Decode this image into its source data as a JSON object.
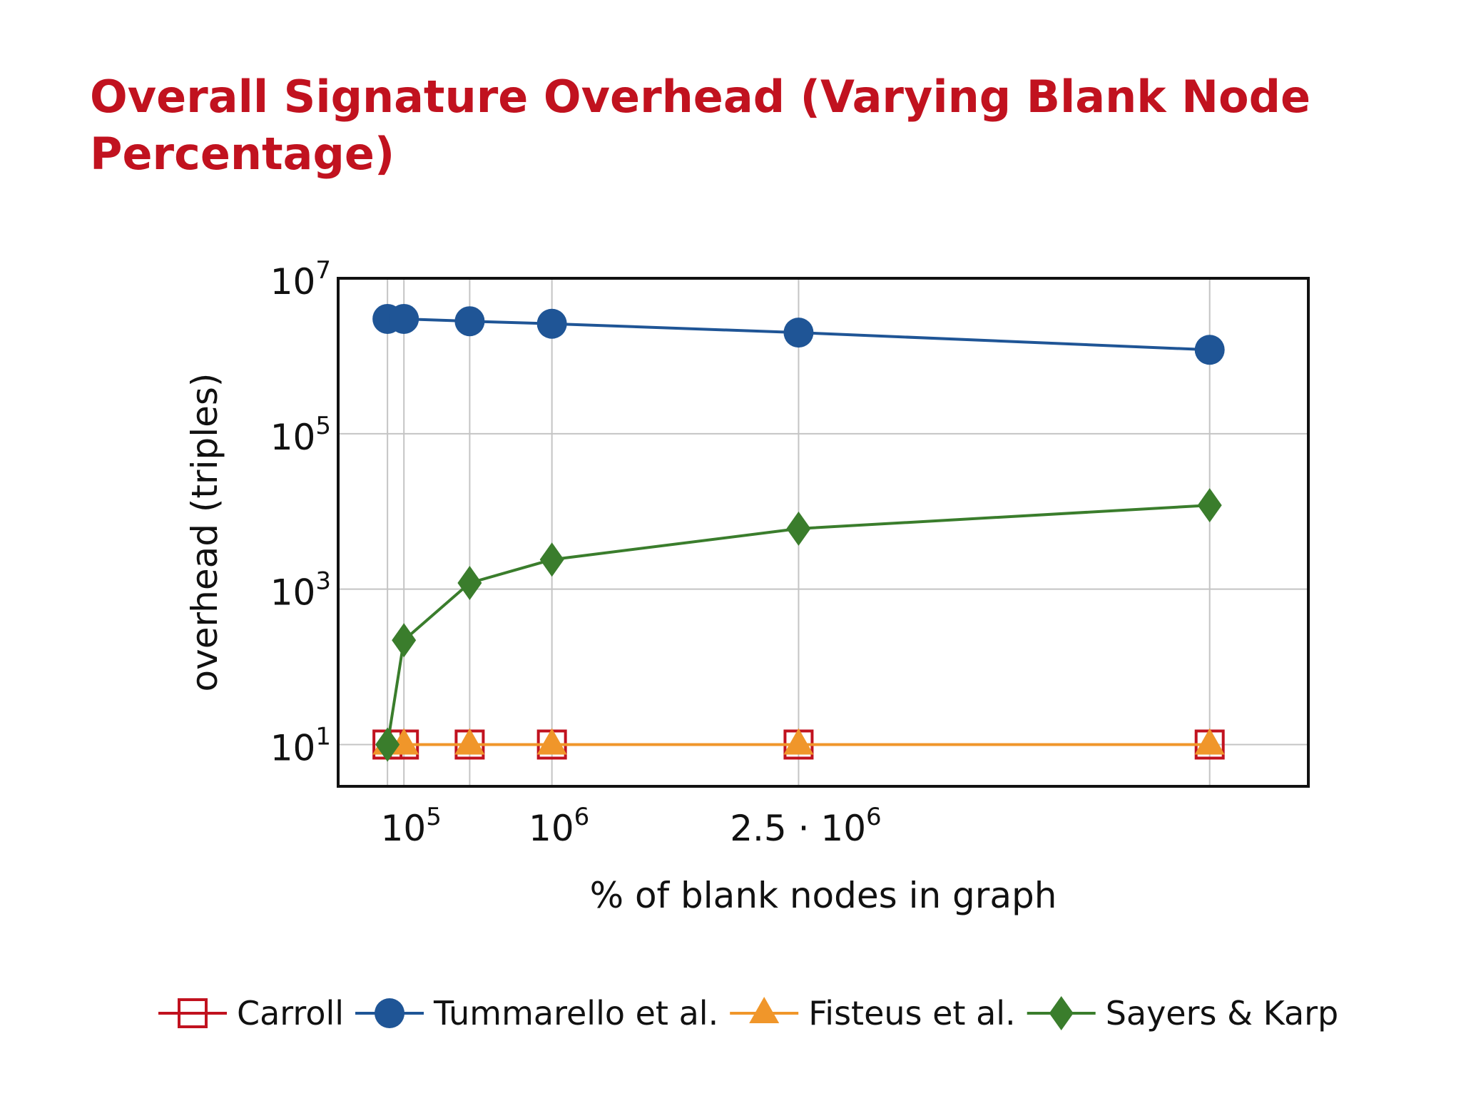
{
  "title": "Overall Signature Overhead (Varying Blank Node Percentage)",
  "chart_data": {
    "type": "line",
    "title": "Overall Signature Overhead (Varying Blank Node Percentage)",
    "xlabel": "% of blank nodes in graph",
    "ylabel": "overhead (triples)",
    "y_scale": "log",
    "grid": true,
    "legend_position": "bottom",
    "xlim": [
      -300000,
      5600000
    ],
    "ylim": [
      2.9,
      10000000
    ],
    "x_ticks": [
      {
        "value": 100000,
        "base": "10",
        "exp": "5"
      },
      {
        "value": 1000000,
        "base": "10",
        "exp": "6"
      },
      {
        "value": 2500000,
        "base": "2.5 · 10",
        "exp": "6"
      }
    ],
    "y_ticks": [
      {
        "value": 10,
        "base": "10",
        "exp": "1"
      },
      {
        "value": 1000,
        "base": "10",
        "exp": "3"
      },
      {
        "value": 100000,
        "base": "10",
        "exp": "5"
      },
      {
        "value": 10000000,
        "base": "10",
        "exp": "7"
      }
    ],
    "x": [
      0,
      100000,
      500000,
      1000000,
      2500000,
      5000000
    ],
    "series": [
      {
        "name": "Carroll",
        "marker": "square-open",
        "color": "#c1121f",
        "values": [
          10,
          10,
          10,
          10,
          10,
          10
        ]
      },
      {
        "name": "Tummarello et al.",
        "marker": "circle",
        "color": "#1f5596",
        "values": [
          3000000,
          3000000,
          2800000,
          2600000,
          2000000,
          1200000
        ]
      },
      {
        "name": "Fisteus et al.",
        "marker": "triangle",
        "color": "#f0962a",
        "values": [
          10,
          10,
          10,
          10,
          10,
          10
        ]
      },
      {
        "name": "Sayers & Karp",
        "marker": "diamond",
        "color": "#3a7d2c",
        "values": [
          10,
          220,
          1200,
          2400,
          6000,
          12000
        ]
      }
    ]
  }
}
